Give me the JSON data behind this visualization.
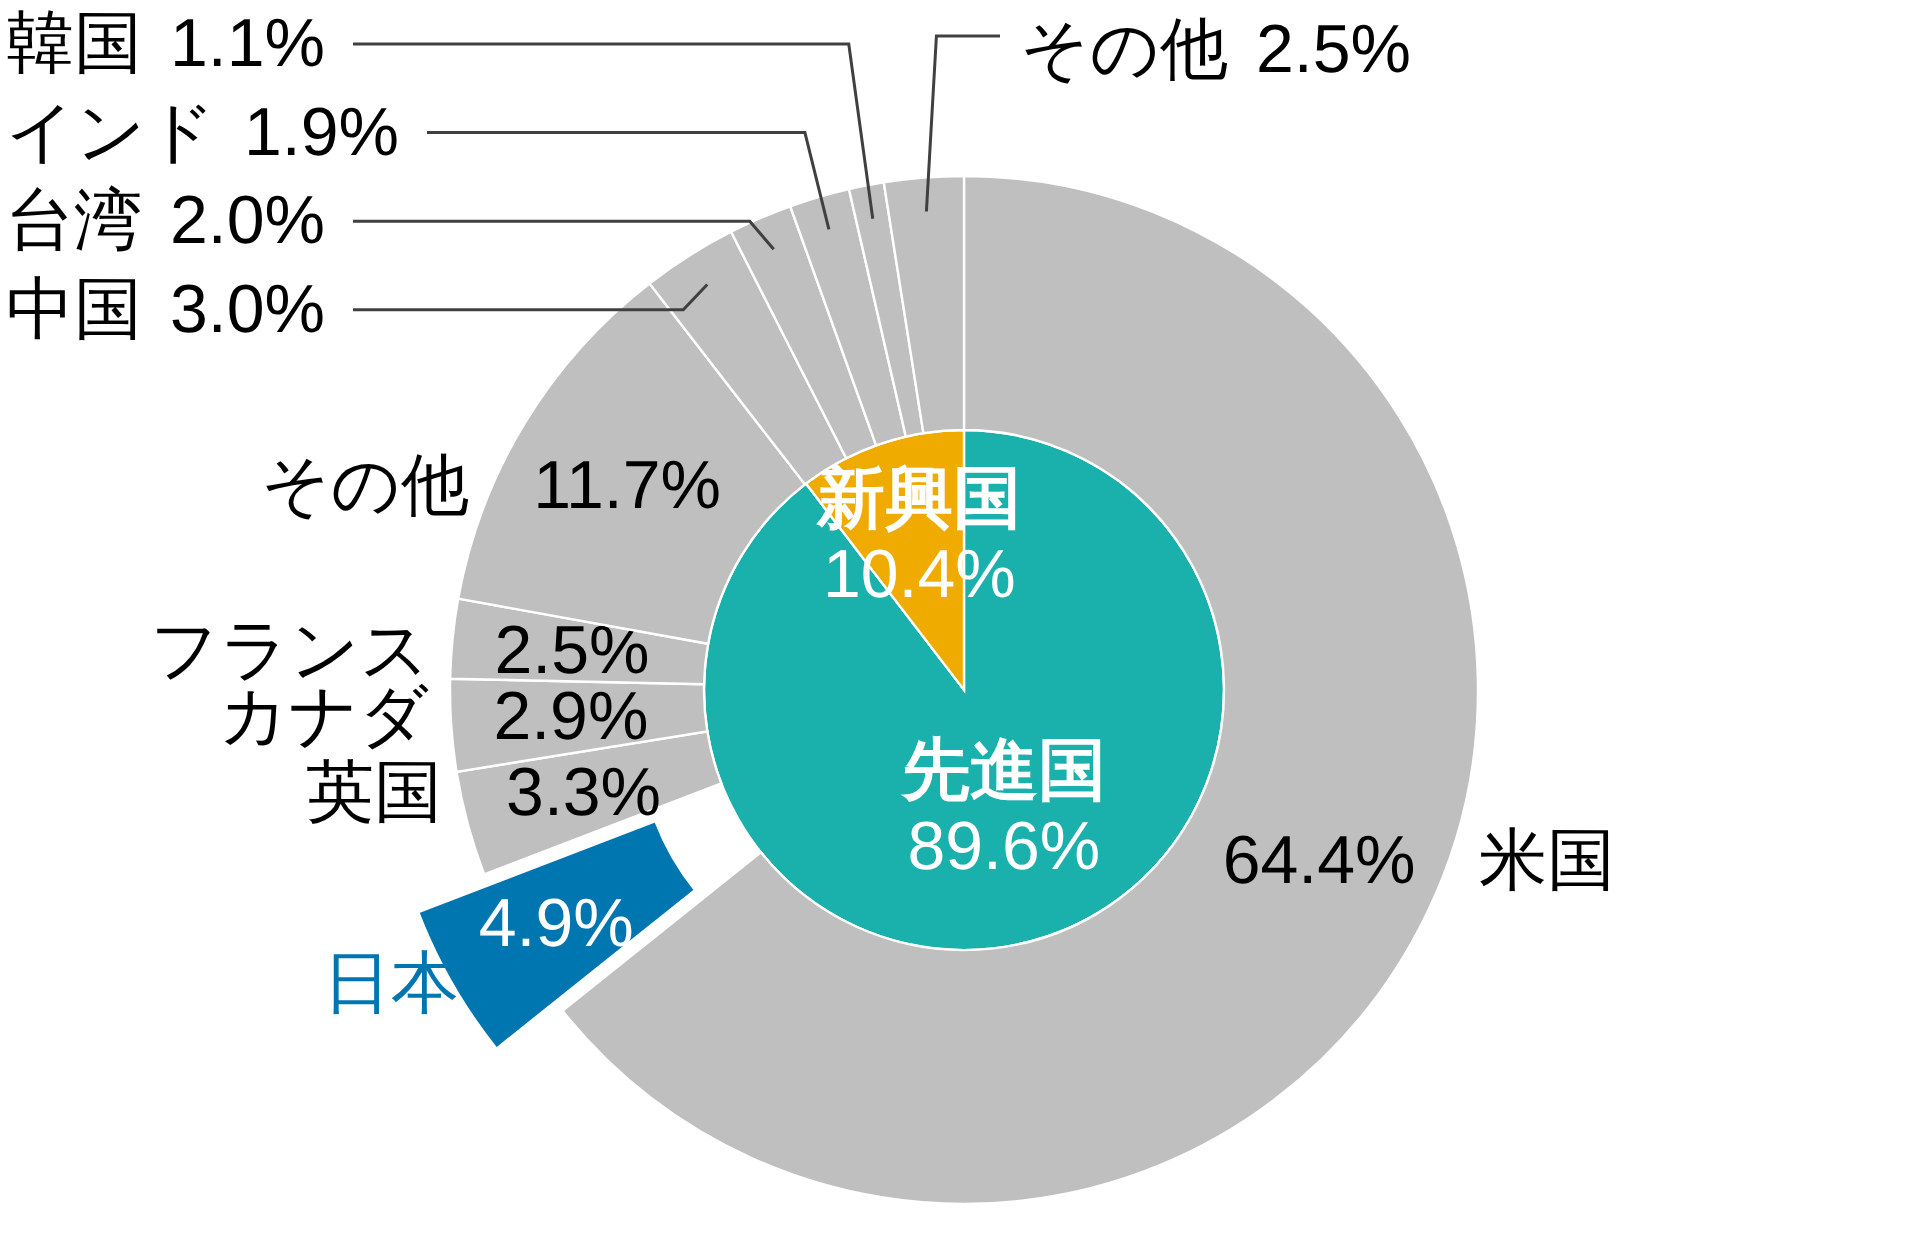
{
  "chart_data": [
    {
      "type": "pie",
      "categories": [
        "先進国",
        "新興国"
      ],
      "values": [
        89.6,
        10.4
      ],
      "value_labels": [
        "89.6%",
        "10.4%"
      ],
      "colors": [
        "#1ab0ab",
        "#f0ab00"
      ]
    },
    {
      "type": "donut",
      "categories": [
        "米国",
        "日本",
        "英国",
        "カナダ",
        "フランス",
        "その他",
        "中国",
        "台湾",
        "インド",
        "韓国",
        "その他"
      ],
      "values": [
        64.4,
        4.9,
        3.3,
        2.9,
        2.5,
        11.7,
        3.0,
        2.0,
        1.9,
        1.1,
        2.5
      ],
      "value_labels": [
        "64.4%",
        "4.9%",
        "3.3%",
        "2.9%",
        "2.5%",
        "11.7%",
        "3.0%",
        "2.0%",
        "1.9%",
        "1.1%",
        "2.5%"
      ],
      "colors": [
        "#bfbfbf",
        "#0076b0",
        "#bfbfbf",
        "#bfbfbf",
        "#bfbfbf",
        "#bfbfbf",
        "#bfbfbf",
        "#bfbfbf",
        "#bfbfbf",
        "#bfbfbf",
        "#bfbfbf"
      ]
    }
  ]
}
